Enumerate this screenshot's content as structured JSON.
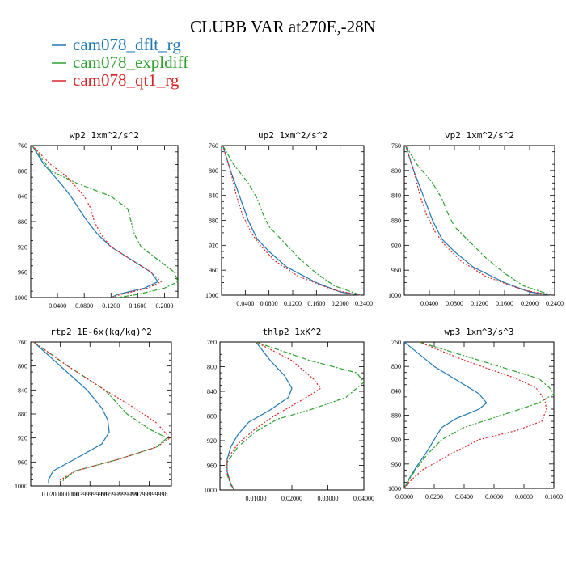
{
  "title": "CLUBB VAR at270E,-28N",
  "legend": [
    {
      "label": "cam078_dflt_rg",
      "color": "#1f77b4"
    },
    {
      "label": "cam078_expldiff",
      "color": "#2ca02c"
    },
    {
      "label": "cam078_qt1_rg",
      "color": "#d62728"
    }
  ],
  "chart_data": [
    {
      "type": "line",
      "title": "wp2  1xm^2/s^2",
      "xlim": [
        0,
        0.22
      ],
      "ylim": [
        760,
        1000
      ],
      "xticks": [
        "0.0400",
        "0.0800",
        "0.1200",
        "0.1600",
        "0.2000"
      ],
      "xtick_values": [
        0.04,
        0.08,
        0.12,
        0.16,
        0.2
      ],
      "yticks": [
        "760",
        "800",
        "840",
        "880",
        "920",
        "960",
        "1000"
      ],
      "y_inverted": true,
      "series": [
        {
          "name": "cam078_dflt_rg",
          "points": [
            [
              0.002,
              760
            ],
            [
              0.02,
              790
            ],
            [
              0.045,
              820
            ],
            [
              0.06,
              840
            ],
            [
              0.072,
              860
            ],
            [
              0.085,
              880
            ],
            [
              0.1,
              900
            ],
            [
              0.12,
              920
            ],
            [
              0.15,
              940
            ],
            [
              0.18,
              960
            ],
            [
              0.19,
              975
            ],
            [
              0.17,
              985
            ],
            [
              0.13,
              995
            ],
            [
              0.12,
              1000
            ]
          ]
        },
        {
          "name": "cam078_expldiff",
          "points": [
            [
              0.002,
              760
            ],
            [
              0.03,
              800
            ],
            [
              0.07,
              820
            ],
            [
              0.12,
              840
            ],
            [
              0.145,
              860
            ],
            [
              0.15,
              880
            ],
            [
              0.155,
              900
            ],
            [
              0.165,
              920
            ],
            [
              0.19,
              940
            ],
            [
              0.215,
              960
            ],
            [
              0.22,
              975
            ],
            [
              0.2,
              985
            ],
            [
              0.16,
              995
            ],
            [
              0.13,
              1000
            ]
          ]
        },
        {
          "name": "cam078_qt1_rg",
          "points": [
            [
              0.002,
              760
            ],
            [
              0.03,
              790
            ],
            [
              0.055,
              810
            ],
            [
              0.08,
              840
            ],
            [
              0.09,
              860
            ],
            [
              0.095,
              880
            ],
            [
              0.105,
              900
            ],
            [
              0.12,
              920
            ],
            [
              0.15,
              940
            ],
            [
              0.18,
              960
            ],
            [
              0.195,
              975
            ],
            [
              0.175,
              985
            ],
            [
              0.135,
              995
            ],
            [
              0.12,
              1000
            ]
          ]
        }
      ]
    },
    {
      "type": "line",
      "title": "up2  1xm^2/s^2",
      "xlim": [
        0,
        0.24
      ],
      "ylim": [
        760,
        1000
      ],
      "xticks": [
        "0.0400",
        "0.0800",
        "0.1200",
        "0.1600",
        "0.2000",
        "0.2400"
      ],
      "xtick_values": [
        0.04,
        0.08,
        0.12,
        0.16,
        0.2,
        0.24
      ],
      "yticks": [
        "760",
        "800",
        "840",
        "880",
        "920",
        "960",
        "1000"
      ],
      "y_inverted": true,
      "series": [
        {
          "name": "cam078_dflt_rg",
          "points": [
            [
              0.002,
              760
            ],
            [
              0.015,
              800
            ],
            [
              0.03,
              840
            ],
            [
              0.045,
              880
            ],
            [
              0.06,
              910
            ],
            [
              0.08,
              930
            ],
            [
              0.11,
              955
            ],
            [
              0.16,
              980
            ],
            [
              0.2,
              995
            ],
            [
              0.235,
              1000
            ]
          ]
        },
        {
          "name": "cam078_expldiff",
          "points": [
            [
              0.002,
              760
            ],
            [
              0.02,
              790
            ],
            [
              0.045,
              820
            ],
            [
              0.06,
              845
            ],
            [
              0.07,
              870
            ],
            [
              0.08,
              890
            ],
            [
              0.1,
              910
            ],
            [
              0.13,
              940
            ],
            [
              0.16,
              965
            ],
            [
              0.19,
              985
            ],
            [
              0.235,
              1000
            ]
          ]
        },
        {
          "name": "cam078_qt1_rg",
          "points": [
            [
              0.002,
              760
            ],
            [
              0.015,
              800
            ],
            [
              0.025,
              840
            ],
            [
              0.035,
              870
            ],
            [
              0.05,
              900
            ],
            [
              0.065,
              920
            ],
            [
              0.09,
              945
            ],
            [
              0.13,
              970
            ],
            [
              0.19,
              992
            ],
            [
              0.235,
              1000
            ]
          ]
        }
      ]
    },
    {
      "type": "line",
      "title": "vp2  1xm^2/s^2",
      "xlim": [
        0,
        0.24
      ],
      "ylim": [
        760,
        1000
      ],
      "xticks": [
        "0.0400",
        "0.0800",
        "0.1200",
        "0.1600",
        "0.2000",
        "0.2400"
      ],
      "xtick_values": [
        0.04,
        0.08,
        0.12,
        0.16,
        0.2,
        0.24
      ],
      "yticks": [
        "760",
        "800",
        "840",
        "880",
        "920",
        "960",
        "1000"
      ],
      "y_inverted": true,
      "series": [
        {
          "name": "cam078_dflt_rg",
          "points": [
            [
              0.002,
              760
            ],
            [
              0.015,
              800
            ],
            [
              0.03,
              840
            ],
            [
              0.045,
              880
            ],
            [
              0.06,
              910
            ],
            [
              0.08,
              930
            ],
            [
              0.11,
              955
            ],
            [
              0.16,
              980
            ],
            [
              0.2,
              995
            ],
            [
              0.235,
              1000
            ]
          ]
        },
        {
          "name": "cam078_expldiff",
          "points": [
            [
              0.002,
              760
            ],
            [
              0.02,
              790
            ],
            [
              0.045,
              820
            ],
            [
              0.06,
              845
            ],
            [
              0.07,
              870
            ],
            [
              0.08,
              890
            ],
            [
              0.1,
              910
            ],
            [
              0.13,
              940
            ],
            [
              0.16,
              965
            ],
            [
              0.19,
              985
            ],
            [
              0.235,
              1000
            ]
          ]
        },
        {
          "name": "cam078_qt1_rg",
          "points": [
            [
              0.002,
              760
            ],
            [
              0.015,
              800
            ],
            [
              0.025,
              840
            ],
            [
              0.035,
              870
            ],
            [
              0.05,
              900
            ],
            [
              0.065,
              920
            ],
            [
              0.09,
              945
            ],
            [
              0.13,
              970
            ],
            [
              0.19,
              992
            ],
            [
              0.235,
              1000
            ]
          ]
        }
      ]
    },
    {
      "type": "line",
      "title": "rtp2  1E-6x(kg/kg)^2",
      "xlim": [
        0,
        0.095
      ],
      "ylim": [
        760,
        1000
      ],
      "xticks": [
        "0.0200000000",
        "0.0399999999",
        "0.0599999999",
        "0.0799999998"
      ],
      "xtick_values": [
        0.02,
        0.04,
        0.06,
        0.08
      ],
      "yticks": [
        "760",
        "800",
        "840",
        "880",
        "920",
        "960",
        "1000"
      ],
      "y_inverted": true,
      "series": [
        {
          "name": "cam078_dflt_rg",
          "points": [
            [
              0.002,
              760
            ],
            [
              0.02,
              800
            ],
            [
              0.038,
              840
            ],
            [
              0.048,
              870
            ],
            [
              0.052,
              890
            ],
            [
              0.053,
              910
            ],
            [
              0.048,
              930
            ],
            [
              0.03,
              955
            ],
            [
              0.015,
              975
            ],
            [
              0.012,
              990
            ],
            [
              0.012,
              995
            ]
          ]
        },
        {
          "name": "cam078_expldiff",
          "points": [
            [
              0.002,
              760
            ],
            [
              0.025,
              800
            ],
            [
              0.05,
              840
            ],
            [
              0.065,
              880
            ],
            [
              0.08,
              905
            ],
            [
              0.092,
              920
            ],
            [
              0.085,
              935
            ],
            [
              0.06,
              955
            ],
            [
              0.03,
              975
            ],
            [
              0.022,
              990
            ],
            [
              0.022,
              995
            ]
          ]
        },
        {
          "name": "cam078_qt1_rg",
          "points": [
            [
              0.002,
              760
            ],
            [
              0.025,
              800
            ],
            [
              0.05,
              840
            ],
            [
              0.07,
              870
            ],
            [
              0.085,
              895
            ],
            [
              0.094,
              920
            ],
            [
              0.085,
              935
            ],
            [
              0.06,
              955
            ],
            [
              0.03,
              975
            ],
            [
              0.02,
              990
            ],
            [
              0.02,
              995
            ]
          ]
        }
      ]
    },
    {
      "type": "line",
      "title": "thlp2  1xK^2",
      "xlim": [
        0,
        0.04
      ],
      "ylim": [
        760,
        1000
      ],
      "xticks": [
        "0.01000",
        "0.02000",
        "0.03000",
        "0.04000"
      ],
      "xtick_values": [
        0.01,
        0.02,
        0.03,
        0.04
      ],
      "yticks": [
        "760",
        "800",
        "840",
        "880",
        "920",
        "960",
        "1000"
      ],
      "y_inverted": true,
      "series": [
        {
          "name": "cam078_dflt_rg",
          "points": [
            [
              0.01,
              760
            ],
            [
              0.014,
              790
            ],
            [
              0.018,
              815
            ],
            [
              0.02,
              835
            ],
            [
              0.019,
              850
            ],
            [
              0.014,
              870
            ],
            [
              0.008,
              890
            ],
            [
              0.005,
              910
            ],
            [
              0.003,
              930
            ],
            [
              0.002,
              950
            ],
            [
              0.002,
              970
            ],
            [
              0.003,
              990
            ],
            [
              0.004,
              1000
            ]
          ]
        },
        {
          "name": "cam078_expldiff",
          "points": [
            [
              0.01,
              760
            ],
            [
              0.025,
              790
            ],
            [
              0.038,
              810
            ],
            [
              0.04,
              825
            ],
            [
              0.035,
              850
            ],
            [
              0.025,
              870
            ],
            [
              0.016,
              885
            ],
            [
              0.01,
              905
            ],
            [
              0.005,
              930
            ],
            [
              0.002,
              955
            ],
            [
              0.002,
              975
            ],
            [
              0.003,
              992
            ],
            [
              0.004,
              1000
            ]
          ]
        },
        {
          "name": "cam078_qt1_rg",
          "points": [
            [
              0.01,
              760
            ],
            [
              0.02,
              790
            ],
            [
              0.026,
              820
            ],
            [
              0.028,
              835
            ],
            [
              0.024,
              850
            ],
            [
              0.021,
              860
            ],
            [
              0.015,
              880
            ],
            [
              0.01,
              900
            ],
            [
              0.005,
              925
            ],
            [
              0.002,
              950
            ],
            [
              0.002,
              972
            ],
            [
              0.003,
              990
            ],
            [
              0.004,
              1000
            ]
          ]
        }
      ]
    },
    {
      "type": "line",
      "title": "wp3  1xm^3/s^3",
      "xlim": [
        0,
        0.1
      ],
      "ylim": [
        760,
        1000
      ],
      "xticks": [
        "0.0000",
        "0.0200",
        "0.0400",
        "0.0600",
        "0.0800",
        "0.1000"
      ],
      "xtick_values": [
        0,
        0.02,
        0.04,
        0.06,
        0.08,
        0.1
      ],
      "yticks": [
        "760",
        "800",
        "840",
        "880",
        "920",
        "960",
        "1000"
      ],
      "y_inverted": true,
      "series": [
        {
          "name": "cam078_dflt_rg",
          "points": [
            [
              0.0,
              760
            ],
            [
              0.02,
              800
            ],
            [
              0.04,
              830
            ],
            [
              0.05,
              845
            ],
            [
              0.055,
              860
            ],
            [
              0.05,
              870
            ],
            [
              0.035,
              885
            ],
            [
              0.025,
              900
            ],
            [
              0.02,
              920
            ],
            [
              0.015,
              940
            ],
            [
              0.008,
              965
            ],
            [
              0.003,
              985
            ],
            [
              0.0,
              1000
            ]
          ]
        },
        {
          "name": "cam078_expldiff",
          "points": [
            [
              0.01,
              760
            ],
            [
              0.05,
              790
            ],
            [
              0.09,
              820
            ],
            [
              0.097,
              835
            ],
            [
              0.1,
              845
            ],
            [
              0.09,
              860
            ],
            [
              0.065,
              880
            ],
            [
              0.04,
              900
            ],
            [
              0.025,
              920
            ],
            [
              0.015,
              945
            ],
            [
              0.008,
              968
            ],
            [
              0.002,
              990
            ],
            [
              0.0,
              1000
            ]
          ]
        },
        {
          "name": "cam078_qt1_rg",
          "points": [
            [
              0.01,
              760
            ],
            [
              0.04,
              790
            ],
            [
              0.075,
              820
            ],
            [
              0.088,
              835
            ],
            [
              0.094,
              855
            ],
            [
              0.095,
              870
            ],
            [
              0.092,
              890
            ],
            [
              0.075,
              905
            ],
            [
              0.05,
              920
            ],
            [
              0.03,
              945
            ],
            [
              0.012,
              970
            ],
            [
              0.003,
              990
            ],
            [
              0.0,
              1000
            ]
          ]
        }
      ]
    }
  ]
}
